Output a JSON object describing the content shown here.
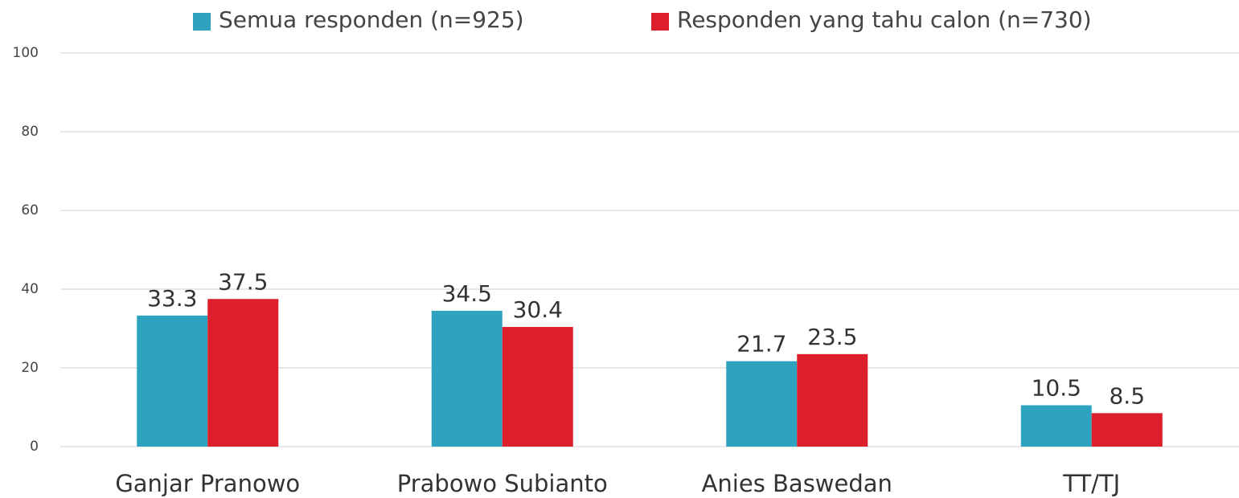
{
  "chart_data": {
    "type": "bar",
    "categories": [
      "Ganjar Pranowo",
      "Prabowo Subianto",
      "Anies Baswedan",
      "TT/TJ"
    ],
    "series": [
      {
        "name": "Semua responden (n=925)",
        "color": "#2ea3bf",
        "values": [
          33.3,
          34.5,
          21.7,
          10.5
        ]
      },
      {
        "name": "Responden yang tahu calon (n=730)",
        "color": "#dc1f2a",
        "values": [
          37.5,
          30.4,
          23.5,
          8.5
        ]
      }
    ],
    "ylim": [
      0,
      100
    ],
    "yticks": [
      0,
      20,
      40,
      60,
      80,
      100
    ],
    "grid": true,
    "legend": "top"
  }
}
